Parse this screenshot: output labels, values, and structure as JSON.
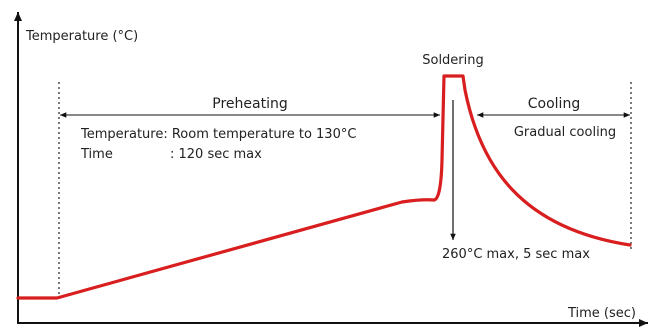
{
  "y_axis_label": "Temperature (°C)",
  "x_axis_label": "Time (sec)",
  "preheating": {
    "label": "Preheating",
    "temperature_line": "Temperature: Room temperature to 130°C",
    "time_line_label": "Time",
    "time_line_value": ": 120 sec max"
  },
  "soldering": {
    "label": "Soldering",
    "note": "260°C max, 5 sec max"
  },
  "cooling": {
    "label": "Cooling",
    "note": "Gradual cooling"
  },
  "colors": {
    "curve": "#d81e1e",
    "axis": "#111111",
    "text": "#222222"
  }
}
